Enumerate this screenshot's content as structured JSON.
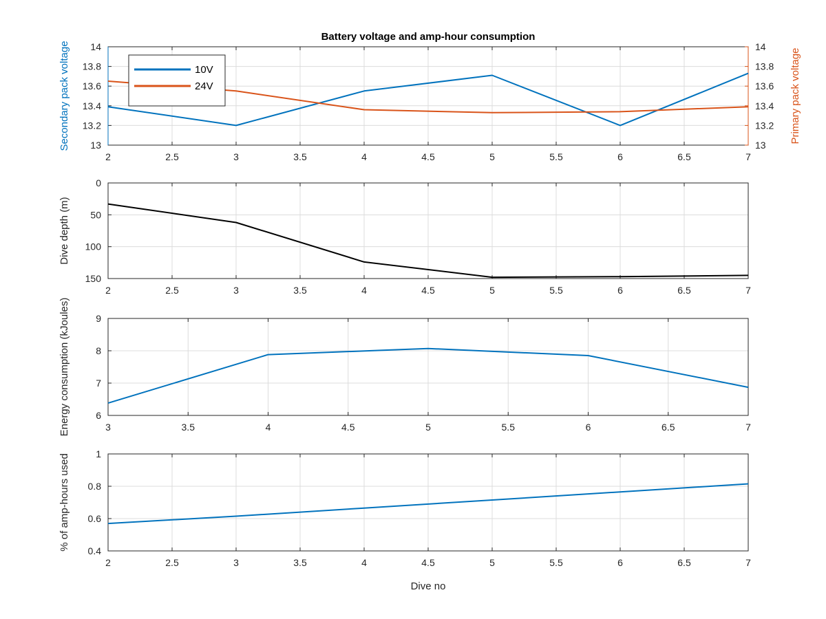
{
  "colors": {
    "blue": "#0072BD",
    "orange": "#D95319",
    "black": "#000000",
    "axis": "#262626",
    "grid": "#dcdcdc"
  },
  "chart_data": [
    {
      "type": "line",
      "title": "Battery voltage and amp-hour consumption",
      "xlabel": "",
      "ylabel": "Secondary pack voltage",
      "ylabel_right": "Primary pack voltage",
      "xlim": [
        2,
        7
      ],
      "ylim": [
        13,
        14
      ],
      "ylim_right": [
        13,
        14
      ],
      "xticks": [
        "2",
        "2.5",
        "3",
        "3.5",
        "4",
        "4.5",
        "5",
        "5.5",
        "6",
        "6.5",
        "7"
      ],
      "yticks": [
        "13",
        "13.2",
        "13.4",
        "13.6",
        "13.8",
        "14"
      ],
      "yticks_right": [
        "13",
        "13.2",
        "13.4",
        "13.6",
        "13.8",
        "14"
      ],
      "grid": true,
      "legend": "top-left",
      "series": [
        {
          "name": "10V",
          "axis": "left",
          "color": "#0072BD",
          "x": [
            2,
            3,
            4,
            5,
            6,
            7
          ],
          "values": [
            13.39,
            13.2,
            13.55,
            13.71,
            13.2,
            13.73
          ]
        },
        {
          "name": "24V",
          "axis": "right",
          "color": "#D95319",
          "x": [
            2,
            3,
            4,
            5,
            6,
            7
          ],
          "values": [
            13.65,
            13.55,
            13.36,
            13.33,
            13.34,
            13.39
          ]
        }
      ]
    },
    {
      "type": "line",
      "title": "",
      "xlabel": "",
      "ylabel": "Dive depth (m)",
      "xlim": [
        2,
        7
      ],
      "ylim": [
        0,
        150
      ],
      "y_reversed": true,
      "xticks": [
        "2",
        "2.5",
        "3",
        "3.5",
        "4",
        "4.5",
        "5",
        "5.5",
        "6",
        "6.5",
        "7"
      ],
      "yticks": [
        "0",
        "50",
        "100",
        "150"
      ],
      "grid": true,
      "series": [
        {
          "color": "#000000",
          "x": [
            2,
            3,
            4,
            5,
            6,
            7
          ],
          "values": [
            33,
            62,
            124,
            148,
            147,
            145
          ]
        }
      ]
    },
    {
      "type": "line",
      "title": "",
      "xlabel": "",
      "ylabel": "Energy consumption (kJoules)",
      "xlim": [
        3,
        7
      ],
      "ylim": [
        6,
        9
      ],
      "xticks": [
        "3",
        "3.5",
        "4",
        "4.5",
        "5",
        "5.5",
        "6",
        "6.5",
        "7"
      ],
      "yticks": [
        "6",
        "7",
        "8",
        "9"
      ],
      "grid": true,
      "series": [
        {
          "color": "#0072BD",
          "x": [
            3,
            4,
            5,
            6,
            7
          ],
          "values": [
            6.38,
            7.88,
            8.07,
            7.85,
            6.87
          ]
        }
      ]
    },
    {
      "type": "line",
      "title": "",
      "xlabel": "Dive no",
      "ylabel": "% of amp-hours used",
      "xlim": [
        2,
        7
      ],
      "ylim": [
        0.4,
        1
      ],
      "xticks": [
        "2",
        "2.5",
        "3",
        "3.5",
        "4",
        "4.5",
        "5",
        "5.5",
        "6",
        "6.5",
        "7"
      ],
      "yticks": [
        "0.4",
        "0.6",
        "0.8",
        "1"
      ],
      "grid": true,
      "series": [
        {
          "color": "#0072BD",
          "x": [
            2,
            3,
            4,
            5,
            6,
            7
          ],
          "values": [
            0.57,
            0.615,
            0.665,
            0.715,
            0.765,
            0.815
          ]
        }
      ]
    }
  ]
}
